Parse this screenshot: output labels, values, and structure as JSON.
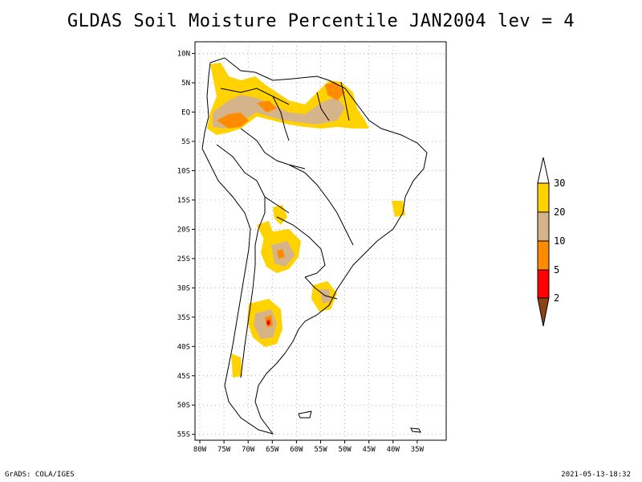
{
  "title": "GLDAS Soil Moisture Percentile JAN2004 lev = 4",
  "footer": {
    "left": "GrADS: COLA/IGES",
    "right": "2021-05-13-18:32"
  },
  "map": {
    "lat_range": [
      -56,
      12
    ],
    "lon_range": [
      -81,
      -29
    ],
    "lat_ticks": [
      "10N",
      "5N",
      "EQ",
      "5S",
      "10S",
      "15S",
      "20S",
      "25S",
      "30S",
      "35S",
      "40S",
      "45S",
      "50S",
      "55S"
    ],
    "lat_tick_values": [
      10,
      5,
      0,
      -5,
      -10,
      -15,
      -20,
      -25,
      -30,
      -35,
      -40,
      -45,
      -50,
      -55
    ],
    "lon_ticks": [
      "80W",
      "75W",
      "70W",
      "65W",
      "60W",
      "55W",
      "50W",
      "45W",
      "40W",
      "35W"
    ],
    "lon_tick_values": [
      -80,
      -75,
      -70,
      -65,
      -60,
      -55,
      -50,
      -45,
      -40,
      -35
    ]
  },
  "legend": {
    "labels": [
      "30",
      "20",
      "10",
      "5",
      "2"
    ],
    "colors": {
      "c20_30": "#ffd200",
      "c10_20": "#d6b48a",
      "c5_10": "#ff8c00",
      "c2_5": "#ff0000",
      "c0_2": "#8b4513"
    }
  }
}
